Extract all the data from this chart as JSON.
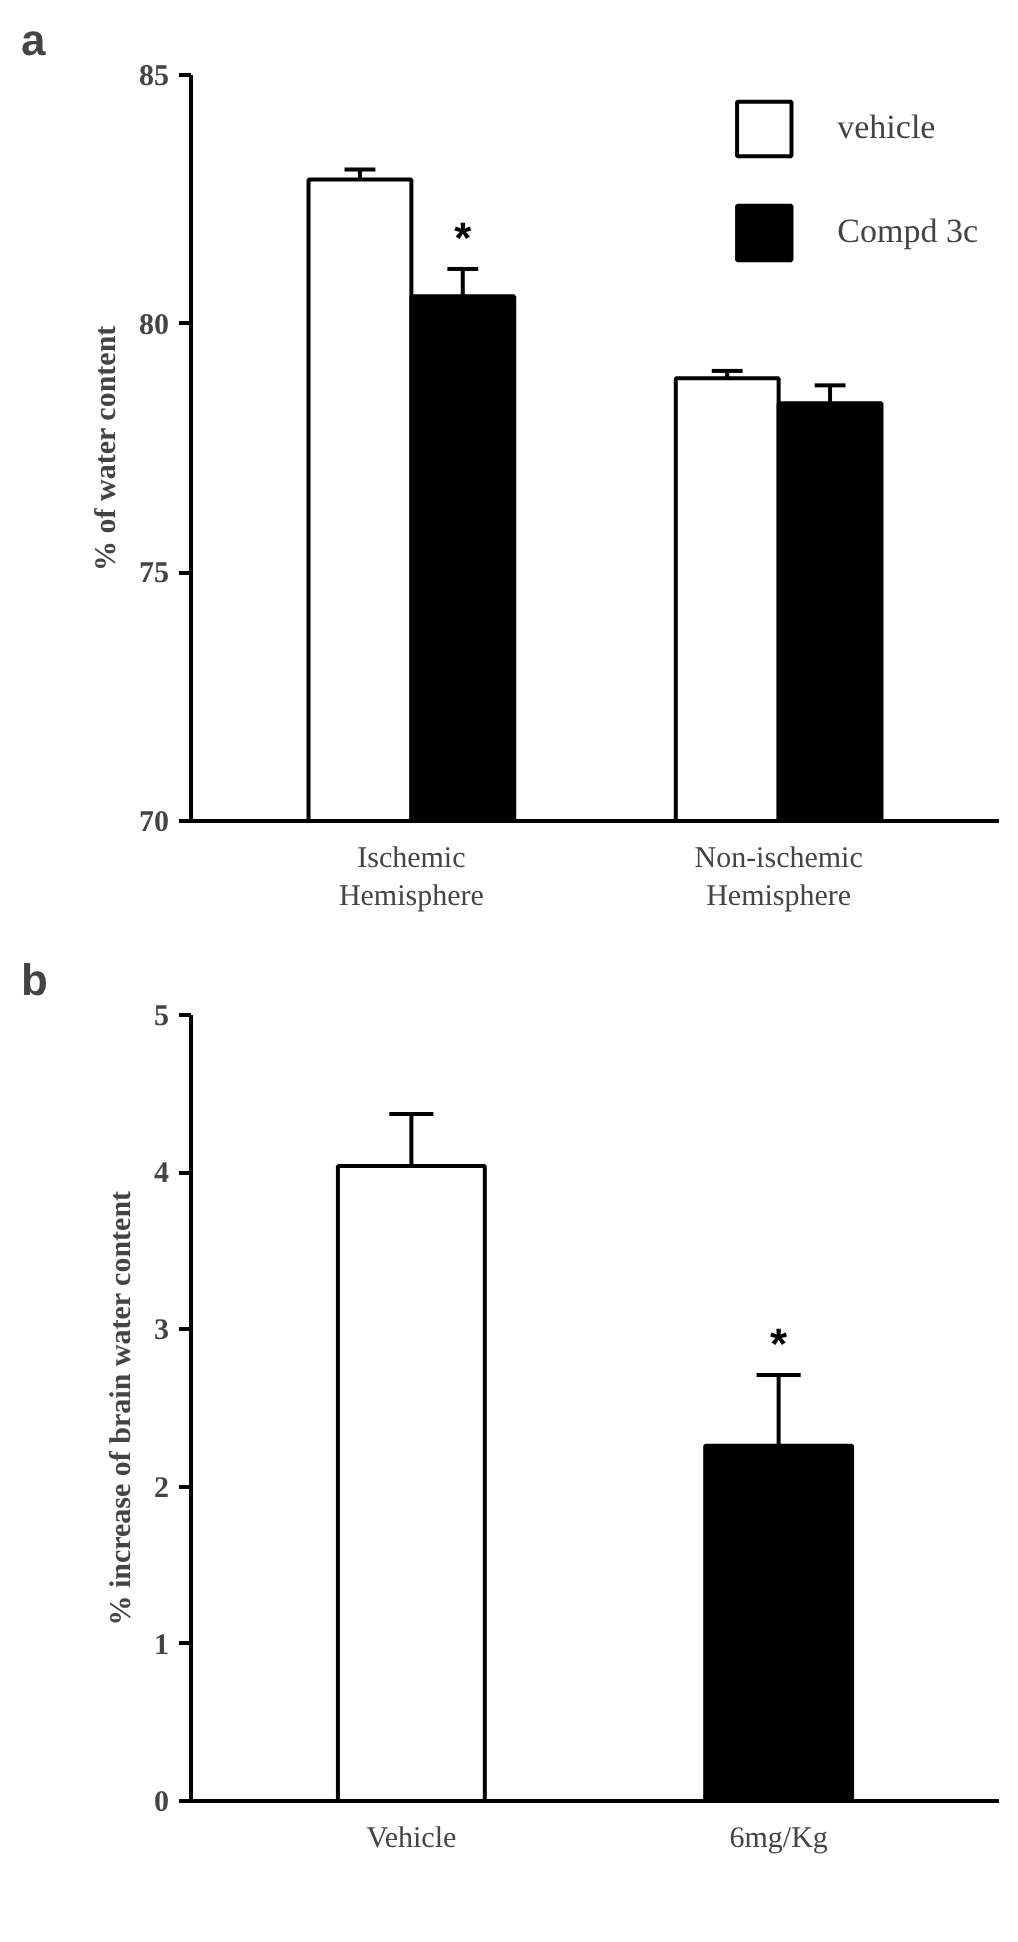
{
  "chart_data": [
    {
      "type": "bar",
      "title": "a",
      "ylabel": "% of water content",
      "categories": [
        "Ischemic\nHemisphere",
        "Non-ischemic\nHemisphere"
      ],
      "series": [
        {
          "name": "vehicle",
          "color": "#ffffff",
          "values": [
            82.9,
            78.9
          ],
          "errors": [
            0.2,
            0.15
          ]
        },
        {
          "name": "Compd 3c",
          "color": "#000000",
          "values": [
            80.55,
            78.4
          ],
          "errors": [
            0.55,
            0.36
          ]
        }
      ],
      "ylim": [
        70,
        85
      ],
      "yticks": [
        70,
        75,
        80,
        85
      ],
      "legend": "top right",
      "grid": false,
      "annotations": [
        {
          "text": "*",
          "x": "Ischemic\nHemisphere",
          "y": 81.1
        }
      ]
    },
    {
      "type": "bar",
      "title": "b",
      "ylabel": "% increase of brain water content",
      "categories": [
        "Vehicle",
        "6mg/Kg"
      ],
      "values": [
        4.04,
        2.26
      ],
      "errors": [
        0.33,
        0.45
      ],
      "colors": [
        "#ffffff",
        "#000000"
      ],
      "ylim": [
        0,
        5
      ],
      "yticks": [
        0,
        1,
        2,
        3,
        4,
        5
      ],
      "grid": false,
      "annotations": [
        {
          "text": "*",
          "x": "6mg/Kg",
          "y": 2.71
        }
      ]
    }
  ]
}
